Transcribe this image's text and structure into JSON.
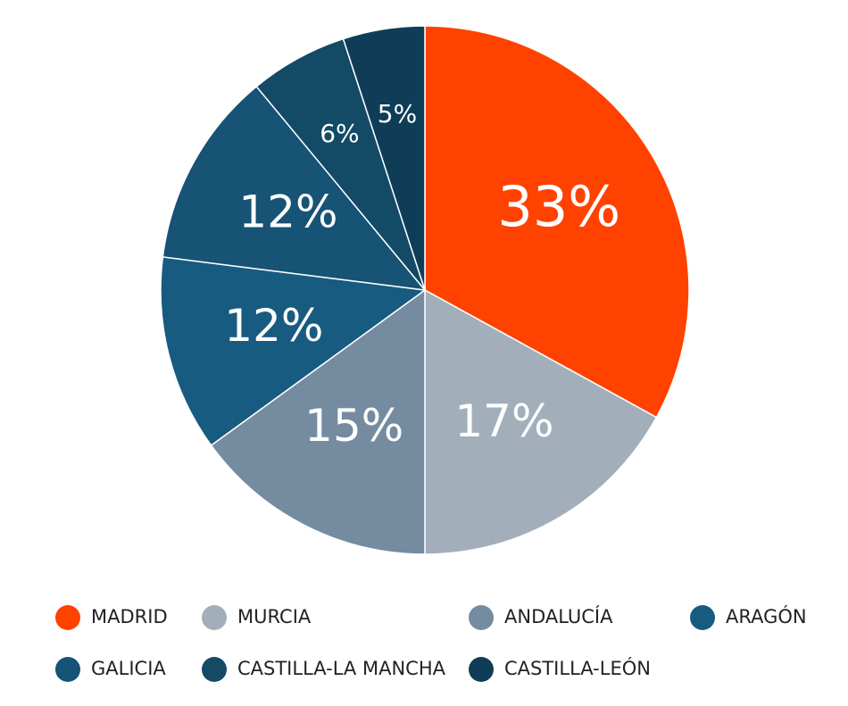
{
  "chart_data": {
    "type": "pie",
    "categories": [
      "MADRID",
      "MURCIA",
      "ANDALUCÍA",
      "ARAGÓN",
      "GALICIA",
      "CASTILLA-LA MANCHA",
      "CASTILLA-LEÓN"
    ],
    "values": [
      33,
      17,
      15,
      12,
      12,
      6,
      5
    ],
    "value_labels": [
      "33%",
      "17%",
      "15%",
      "12%",
      "12%",
      "6%",
      "5%"
    ],
    "colors": [
      "#ff4200",
      "#a2afba",
      "#758ba0",
      "#185b80",
      "#165374",
      "#134a66",
      "#0f3d58"
    ]
  }
}
